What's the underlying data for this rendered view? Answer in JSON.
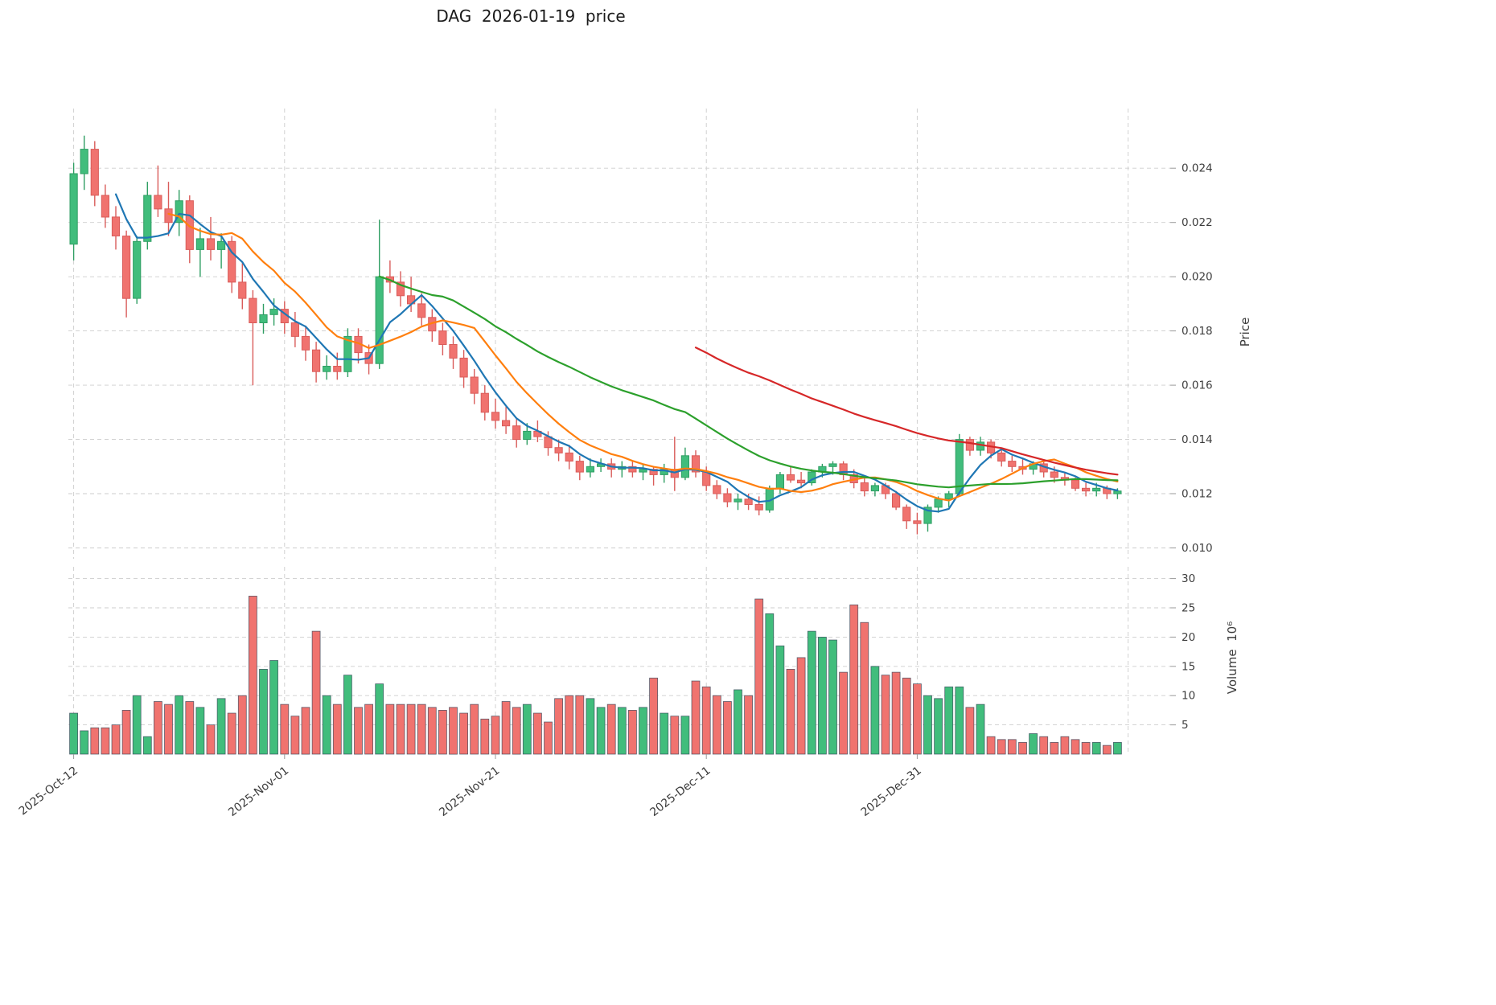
{
  "chart_data": {
    "type": "candlestick",
    "title": "DAG  2026-01-19  price",
    "legend_position": "none",
    "grid": true,
    "price_axis": {
      "label": "Price",
      "side": "right",
      "ylim": [
        0.0096,
        0.0262
      ],
      "ticks": [
        0.01,
        0.012,
        0.014,
        0.016,
        0.018,
        0.02,
        0.022,
        0.024
      ],
      "tick_labels": [
        "0.010",
        "0.012",
        "0.014",
        "0.016",
        "0.018",
        "0.020",
        "0.022",
        "0.024"
      ]
    },
    "volume_axis": {
      "label": "Volume  10⁶",
      "side": "right",
      "ylim": [
        0,
        32
      ],
      "ticks": [
        5,
        10,
        15,
        20,
        25,
        30
      ],
      "tick_labels": [
        "5",
        "10",
        "15",
        "20",
        "25",
        "30"
      ]
    },
    "x_axis": {
      "start_label": "2025-Oct-12",
      "end_implied": "2026-01-19",
      "ticks": [
        {
          "index": 0,
          "label": "2025-Oct-12"
        },
        {
          "index": 20,
          "label": "2025-Nov-01"
        },
        {
          "index": 40,
          "label": "2025-Nov-21"
        },
        {
          "index": 60,
          "label": "2025-Dec-11"
        },
        {
          "index": 80,
          "label": "2025-Dec-31"
        },
        {
          "index": 100,
          "label": ""
        }
      ]
    },
    "moving_averages": [
      {
        "window": 5,
        "color": "#1f77b4"
      },
      {
        "window": 10,
        "color": "#ff7f0e"
      },
      {
        "window": 30,
        "color": "#2ca02c"
      },
      {
        "window": 60,
        "color": "#d62728"
      }
    ],
    "colors": {
      "up": "#41bd7c",
      "down": "#f0736f",
      "up_edge": "#2f9e63",
      "down_edge": "#d95c5a",
      "volume_edge": "#2c3e50",
      "grid": "#cdcdcd",
      "text": "#3c3c3c"
    },
    "ohlc": [
      [
        0.0212,
        0.0242,
        0.0206,
        0.0238
      ],
      [
        0.0238,
        0.0252,
        0.0232,
        0.0247
      ],
      [
        0.0247,
        0.025,
        0.0226,
        0.023
      ],
      [
        0.023,
        0.0234,
        0.0218,
        0.0222
      ],
      [
        0.0222,
        0.0226,
        0.021,
        0.0215
      ],
      [
        0.0215,
        0.0217,
        0.0185,
        0.0192
      ],
      [
        0.0192,
        0.0215,
        0.019,
        0.0213
      ],
      [
        0.0213,
        0.0235,
        0.021,
        0.023
      ],
      [
        0.023,
        0.0241,
        0.0222,
        0.0225
      ],
      [
        0.0225,
        0.0235,
        0.0215,
        0.022
      ],
      [
        0.022,
        0.0232,
        0.0215,
        0.0228
      ],
      [
        0.0228,
        0.023,
        0.0205,
        0.021
      ],
      [
        0.021,
        0.0218,
        0.02,
        0.0214
      ],
      [
        0.0214,
        0.0222,
        0.0206,
        0.021
      ],
      [
        0.021,
        0.0216,
        0.0203,
        0.0213
      ],
      [
        0.0213,
        0.0215,
        0.0194,
        0.0198
      ],
      [
        0.0198,
        0.0205,
        0.0188,
        0.0192
      ],
      [
        0.0192,
        0.0195,
        0.016,
        0.0183
      ],
      [
        0.0183,
        0.019,
        0.0179,
        0.0186
      ],
      [
        0.0186,
        0.0192,
        0.0182,
        0.0188
      ],
      [
        0.0188,
        0.0191,
        0.0179,
        0.0183
      ],
      [
        0.0183,
        0.0187,
        0.0174,
        0.0178
      ],
      [
        0.0178,
        0.0182,
        0.0169,
        0.0173
      ],
      [
        0.0173,
        0.0176,
        0.0161,
        0.0165
      ],
      [
        0.0165,
        0.0171,
        0.0162,
        0.0167
      ],
      [
        0.0167,
        0.0172,
        0.0162,
        0.0165
      ],
      [
        0.0165,
        0.0181,
        0.0163,
        0.0178
      ],
      [
        0.0178,
        0.0181,
        0.0168,
        0.0172
      ],
      [
        0.0172,
        0.0175,
        0.0164,
        0.0168
      ],
      [
        0.0168,
        0.0221,
        0.0166,
        0.02
      ],
      [
        0.02,
        0.0206,
        0.0194,
        0.0198
      ],
      [
        0.0198,
        0.0202,
        0.0189,
        0.0193
      ],
      [
        0.0193,
        0.02,
        0.0187,
        0.019
      ],
      [
        0.019,
        0.0194,
        0.0182,
        0.0185
      ],
      [
        0.0185,
        0.0188,
        0.0176,
        0.018
      ],
      [
        0.018,
        0.0183,
        0.0171,
        0.0175
      ],
      [
        0.0175,
        0.0178,
        0.0166,
        0.017
      ],
      [
        0.017,
        0.0173,
        0.0159,
        0.0163
      ],
      [
        0.0163,
        0.0166,
        0.0153,
        0.0157
      ],
      [
        0.0157,
        0.016,
        0.0147,
        0.015
      ],
      [
        0.015,
        0.0155,
        0.0144,
        0.0147
      ],
      [
        0.0147,
        0.0152,
        0.0142,
        0.0145
      ],
      [
        0.0145,
        0.0148,
        0.0137,
        0.014
      ],
      [
        0.014,
        0.0146,
        0.0138,
        0.0143
      ],
      [
        0.0143,
        0.0147,
        0.0139,
        0.0141
      ],
      [
        0.0141,
        0.0143,
        0.0134,
        0.0137
      ],
      [
        0.0137,
        0.014,
        0.0132,
        0.0135
      ],
      [
        0.0135,
        0.0138,
        0.0129,
        0.0132
      ],
      [
        0.0132,
        0.0134,
        0.0125,
        0.0128
      ],
      [
        0.0128,
        0.0133,
        0.0126,
        0.013
      ],
      [
        0.013,
        0.0133,
        0.0128,
        0.0131
      ],
      [
        0.0131,
        0.0133,
        0.0126,
        0.0129
      ],
      [
        0.0129,
        0.0132,
        0.0126,
        0.013
      ],
      [
        0.013,
        0.0132,
        0.0126,
        0.0128
      ],
      [
        0.0128,
        0.0131,
        0.0125,
        0.0129
      ],
      [
        0.0129,
        0.013,
        0.0123,
        0.0127
      ],
      [
        0.0127,
        0.0131,
        0.0124,
        0.0129
      ],
      [
        0.0129,
        0.0141,
        0.0121,
        0.0126
      ],
      [
        0.0126,
        0.0137,
        0.0125,
        0.0134
      ],
      [
        0.0134,
        0.0136,
        0.0126,
        0.0128
      ],
      [
        0.0128,
        0.013,
        0.0121,
        0.0123
      ],
      [
        0.0123,
        0.0125,
        0.0118,
        0.012
      ],
      [
        0.012,
        0.0122,
        0.0115,
        0.0117
      ],
      [
        0.0117,
        0.012,
        0.0114,
        0.0118
      ],
      [
        0.0118,
        0.012,
        0.0114,
        0.0116
      ],
      [
        0.0116,
        0.0119,
        0.0112,
        0.0114
      ],
      [
        0.0114,
        0.0123,
        0.0113,
        0.0122
      ],
      [
        0.0122,
        0.0128,
        0.012,
        0.0127
      ],
      [
        0.0127,
        0.013,
        0.0124,
        0.0125
      ],
      [
        0.0125,
        0.0128,
        0.0122,
        0.0124
      ],
      [
        0.0124,
        0.0129,
        0.0123,
        0.0128
      ],
      [
        0.0128,
        0.0131,
        0.0126,
        0.013
      ],
      [
        0.013,
        0.0132,
        0.0127,
        0.0131
      ],
      [
        0.0131,
        0.0132,
        0.0125,
        0.0127
      ],
      [
        0.0127,
        0.0129,
        0.0122,
        0.0124
      ],
      [
        0.0124,
        0.0126,
        0.0119,
        0.0121
      ],
      [
        0.0121,
        0.0124,
        0.0119,
        0.0123
      ],
      [
        0.0123,
        0.0124,
        0.0118,
        0.012
      ],
      [
        0.012,
        0.0121,
        0.0114,
        0.0115
      ],
      [
        0.0115,
        0.0116,
        0.0107,
        0.011
      ],
      [
        0.011,
        0.0113,
        0.0105,
        0.0109
      ],
      [
        0.0109,
        0.0116,
        0.0106,
        0.0115
      ],
      [
        0.0115,
        0.0119,
        0.0113,
        0.0118
      ],
      [
        0.0118,
        0.0121,
        0.0115,
        0.012
      ],
      [
        0.012,
        0.0142,
        0.0119,
        0.014
      ],
      [
        0.014,
        0.0141,
        0.0134,
        0.0136
      ],
      [
        0.0136,
        0.0141,
        0.0134,
        0.0139
      ],
      [
        0.0139,
        0.014,
        0.0133,
        0.0135
      ],
      [
        0.0135,
        0.0137,
        0.013,
        0.0132
      ],
      [
        0.0132,
        0.0134,
        0.0128,
        0.013
      ],
      [
        0.013,
        0.0133,
        0.0127,
        0.0129
      ],
      [
        0.0129,
        0.0132,
        0.0127,
        0.0131
      ],
      [
        0.0131,
        0.0132,
        0.0126,
        0.0128
      ],
      [
        0.0128,
        0.013,
        0.0124,
        0.0126
      ],
      [
        0.0126,
        0.0128,
        0.0123,
        0.0125
      ],
      [
        0.0125,
        0.0126,
        0.0121,
        0.0122
      ],
      [
        0.0122,
        0.0124,
        0.0119,
        0.0121
      ],
      [
        0.0121,
        0.0124,
        0.0119,
        0.0122
      ],
      [
        0.0122,
        0.0123,
        0.0118,
        0.012
      ],
      [
        0.012,
        0.0122,
        0.0118,
        0.0121
      ]
    ],
    "volumes": [
      7,
      4,
      4.5,
      4.5,
      5,
      7.5,
      10,
      3,
      9,
      8.5,
      10,
      9,
      8,
      5,
      9.5,
      7,
      10,
      27,
      14.5,
      16,
      8.5,
      6.5,
      8,
      21,
      10,
      8.5,
      13.5,
      8,
      8.5,
      12,
      8.5,
      8.5,
      8.5,
      8.5,
      8,
      7.5,
      8,
      7,
      8.5,
      6,
      6.5,
      9,
      8,
      8.5,
      7,
      5.5,
      9.5,
      10,
      10,
      9.5,
      8,
      8.5,
      8,
      7.5,
      8,
      13,
      7,
      6.5,
      6.5,
      12.5,
      11.5,
      10,
      9,
      11,
      10,
      26.5,
      24,
      18.5,
      14.5,
      16.5,
      21,
      20,
      19.5,
      14,
      25.5,
      22.5,
      15,
      13.5,
      14,
      13,
      12,
      10,
      9.5,
      11.5,
      11.5,
      8,
      8.5,
      3,
      2.5,
      2.5,
      2,
      3.5,
      3,
      2,
      3,
      2.5,
      2,
      2,
      1.5,
      2
    ]
  }
}
